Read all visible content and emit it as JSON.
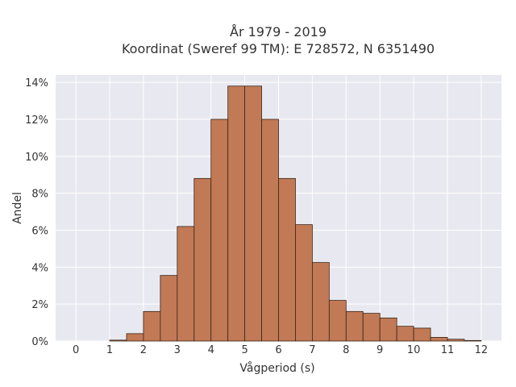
{
  "chart_data": {
    "type": "bar",
    "title": "År 1979 - 2019",
    "subtitle": "Koordinat (Sweref 99 TM): E 728572, N 6351490",
    "xlabel": "Vågperiod (s)",
    "ylabel": "Andel",
    "xlim": [
      -0.6,
      12.6
    ],
    "ylim": [
      0,
      14.4
    ],
    "x_ticks": [
      0,
      1,
      2,
      3,
      4,
      5,
      6,
      7,
      8,
      9,
      10,
      11,
      12
    ],
    "y_ticks": [
      0,
      2,
      4,
      6,
      8,
      10,
      12,
      14
    ],
    "y_tick_labels": [
      "0%",
      "2%",
      "4%",
      "6%",
      "8%",
      "10%",
      "12%",
      "14%"
    ],
    "bin_width": 0.5,
    "bins": [
      {
        "x0": 1.0,
        "x1": 1.5,
        "value": 0.05
      },
      {
        "x0": 1.5,
        "x1": 2.0,
        "value": 0.4
      },
      {
        "x0": 2.0,
        "x1": 2.5,
        "value": 1.6
      },
      {
        "x0": 2.5,
        "x1": 3.0,
        "value": 3.55
      },
      {
        "x0": 3.0,
        "x1": 3.5,
        "value": 6.2
      },
      {
        "x0": 3.5,
        "x1": 4.0,
        "value": 8.8
      },
      {
        "x0": 4.0,
        "x1": 4.5,
        "value": 12.0
      },
      {
        "x0": 4.5,
        "x1": 5.0,
        "value": 13.8
      },
      {
        "x0": 5.0,
        "x1": 5.5,
        "value": 13.8
      },
      {
        "x0": 5.5,
        "x1": 6.0,
        "value": 12.0
      },
      {
        "x0": 6.0,
        "x1": 6.5,
        "value": 8.8
      },
      {
        "x0": 6.5,
        "x1": 7.0,
        "value": 6.3
      },
      {
        "x0": 7.0,
        "x1": 7.5,
        "value": 4.25
      },
      {
        "x0": 7.5,
        "x1": 8.0,
        "value": 2.2
      },
      {
        "x0": 8.0,
        "x1": 8.5,
        "value": 1.6
      },
      {
        "x0": 8.5,
        "x1": 9.0,
        "value": 1.5
      },
      {
        "x0": 9.0,
        "x1": 9.5,
        "value": 1.25
      },
      {
        "x0": 9.5,
        "x1": 10.0,
        "value": 0.8
      },
      {
        "x0": 10.0,
        "x1": 10.5,
        "value": 0.7
      },
      {
        "x0": 10.5,
        "x1": 11.0,
        "value": 0.2
      },
      {
        "x0": 11.0,
        "x1": 11.5,
        "value": 0.1
      },
      {
        "x0": 11.5,
        "x1": 12.0,
        "value": 0.03
      }
    ],
    "grid": true,
    "colors": {
      "bar_fill": "#c17a55",
      "bar_stroke": "#3a2418",
      "plot_background": "#e8e9f0",
      "grid": "#ffffff"
    }
  }
}
